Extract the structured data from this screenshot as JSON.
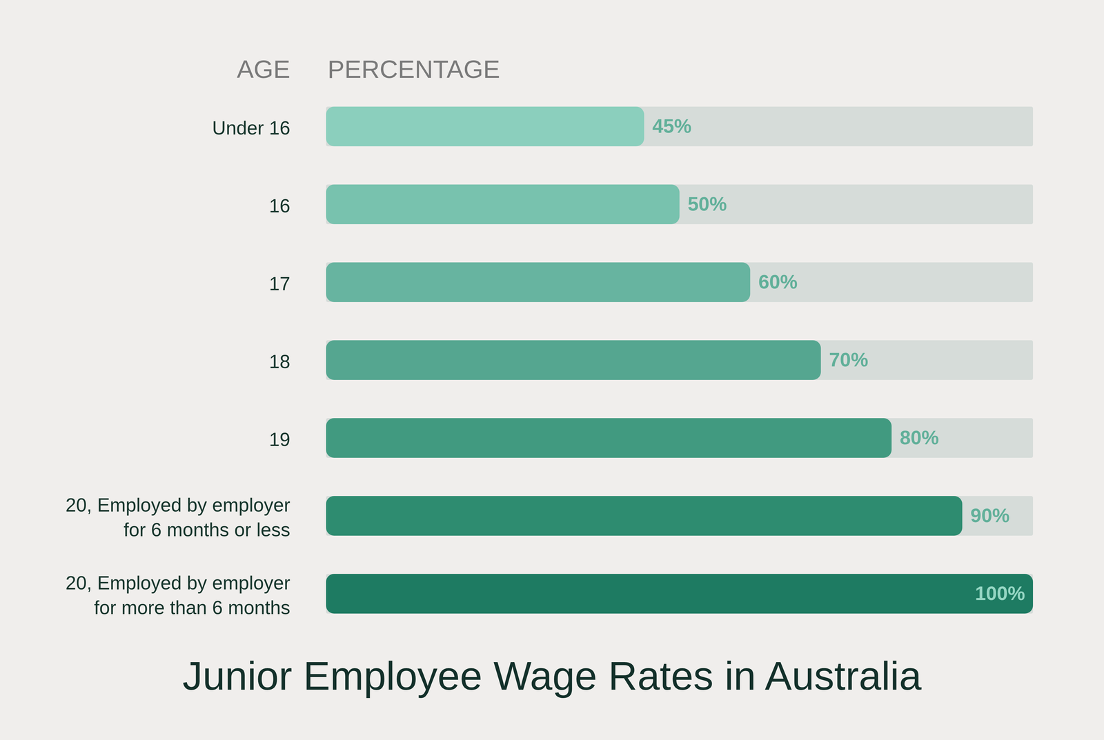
{
  "chart_data": {
    "type": "bar",
    "orientation": "horizontal",
    "title": "Junior Employee Wage Rates in Australia",
    "y_label": "AGE",
    "x_label": "PERCENTAGE",
    "categories": [
      "Under 16",
      "16",
      "17",
      "18",
      "19",
      "20, Employed by employer\nfor 6 months or less",
      "20, Employed by employer\nfor more than 6 months"
    ],
    "values": [
      45,
      50,
      60,
      70,
      80,
      90,
      100
    ],
    "value_labels": [
      "45%",
      "50%",
      "60%",
      "70%",
      "80%",
      "90%",
      "100%"
    ],
    "colors": [
      "#8bcfbd",
      "#78c2ae",
      "#67b4a0",
      "#55a690",
      "#419a80",
      "#2e8c70",
      "#1e7b62"
    ],
    "xlim": [
      0,
      100
    ],
    "data_labels": true,
    "tick_labels": false,
    "grid": false
  }
}
